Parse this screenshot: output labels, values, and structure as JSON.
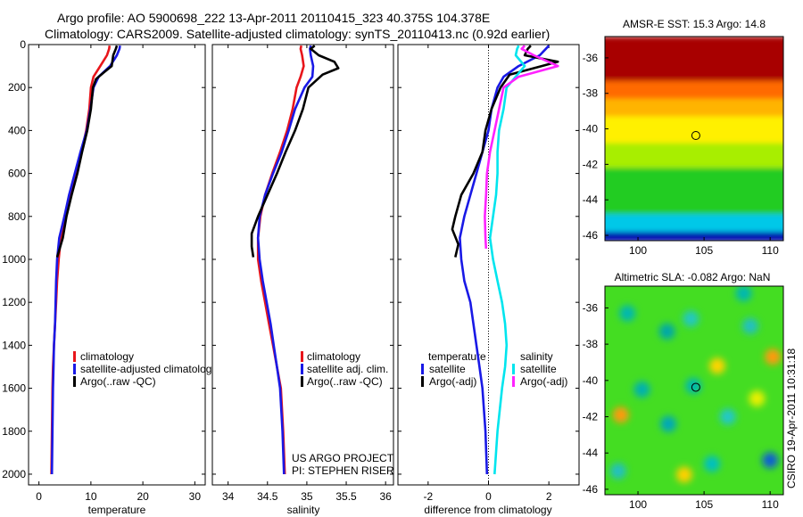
{
  "header": {
    "line1": "Argo profile: AO 5900698_222 13-Apr-2011 20110415_323 40.375S 104.378E",
    "line2": "Climatology: CARS2009. Satellite-adjusted climatology: synTS_20110413.nc (0.92d earlier)"
  },
  "side_label": "CSIRO 19-Apr-2011 10:31:18",
  "credit": {
    "line1": "US ARGO PROJECT",
    "line2": "PI: STEPHEN RISER"
  },
  "colors": {
    "red": "#e8151b",
    "blue": "#1919e6",
    "black": "#000000",
    "cyan": "#00e5ee",
    "magenta": "#ff22ff"
  },
  "chart_data": [
    {
      "type": "line",
      "panel": "temperature",
      "xlabel": "temperature",
      "ylabel": "",
      "xlim": [
        -2,
        32
      ],
      "ylim": [
        2050,
        0
      ],
      "xticks": [
        0,
        10,
        20,
        30
      ],
      "yticks": [
        0,
        200,
        400,
        600,
        800,
        1000,
        1200,
        1400,
        1600,
        1800,
        2000
      ],
      "legend": {
        "position": "lower-middle",
        "entries": [
          "climatology",
          "satellite-adjusted climatology",
          "Argo(..raw -QC)"
        ]
      },
      "series": [
        {
          "name": "climatology",
          "color": "red",
          "x": [
            13.6,
            13.5,
            13.1,
            11.8,
            10.5,
            10.0,
            9.7,
            9.1,
            8.2,
            7.3,
            6.2,
            4.9,
            4.2,
            3.8,
            3.5,
            3.3,
            3.1,
            2.9,
            2.7,
            2.6,
            2.5,
            2.4
          ],
          "y": [
            5,
            20,
            50,
            100,
            150,
            200,
            300,
            400,
            500,
            600,
            700,
            800,
            900,
            1000,
            1100,
            1200,
            1300,
            1400,
            1500,
            1600,
            1800,
            2000
          ]
        },
        {
          "name": "satellite-adjusted climatology",
          "color": "blue",
          "x": [
            15.6,
            15.5,
            15.0,
            13.7,
            11.5,
            10.5,
            9.9,
            9.2,
            8.0,
            6.9,
            5.8,
            4.9,
            3.9,
            3.5,
            3.3,
            3.2,
            3.1,
            2.9,
            2.8,
            2.7,
            2.6,
            2.5
          ],
          "y": [
            5,
            20,
            50,
            100,
            150,
            200,
            300,
            400,
            500,
            600,
            700,
            800,
            900,
            1000,
            1100,
            1200,
            1300,
            1400,
            1500,
            1600,
            1800,
            2000
          ]
        },
        {
          "name": "Argo(..raw -QC)",
          "color": "black",
          "x": [
            15.0,
            14.8,
            14.3,
            14.0,
            12.5,
            11.0,
            10.4,
            10.0,
            9.3,
            8.3,
            7.4,
            6.3,
            5.3,
            4.6,
            4.0,
            3.5
          ],
          "y": [
            5,
            20,
            50,
            100,
            130,
            160,
            200,
            300,
            400,
            500,
            600,
            700,
            800,
            900,
            950,
            990
          ]
        }
      ]
    },
    {
      "type": "line",
      "panel": "salinity",
      "xlabel": "salinity",
      "ylabel": "",
      "xlim": [
        33.8,
        36.1
      ],
      "ylim": [
        2050,
        0
      ],
      "xticks": [
        34,
        34.5,
        35,
        35.5,
        36
      ],
      "legend": {
        "position": "lower-middle",
        "entries": [
          "climatology",
          "satellite adj. clim.",
          "Argo(..raw -QC)"
        ]
      },
      "series": [
        {
          "name": "climatology",
          "color": "red",
          "x": [
            34.93,
            34.92,
            34.94,
            34.96,
            34.92,
            34.87,
            34.82,
            34.75,
            34.66,
            34.56,
            34.47,
            34.41,
            34.38,
            34.38,
            34.42,
            34.47,
            34.52,
            34.57,
            34.62,
            34.67,
            34.7,
            34.72
          ],
          "y": [
            5,
            20,
            50,
            100,
            150,
            200,
            300,
            400,
            500,
            600,
            700,
            800,
            900,
            1000,
            1100,
            1200,
            1300,
            1400,
            1500,
            1600,
            1800,
            2000
          ]
        },
        {
          "name": "satellite adj. clim.",
          "color": "blue",
          "x": [
            35.05,
            35.04,
            35.05,
            35.08,
            35.07,
            34.97,
            34.85,
            34.77,
            34.68,
            34.57,
            34.47,
            34.4,
            34.38,
            34.4,
            34.44,
            34.49,
            34.54,
            34.58,
            34.62,
            34.66,
            34.69,
            34.71
          ],
          "y": [
            5,
            20,
            50,
            100,
            150,
            200,
            300,
            400,
            500,
            600,
            700,
            800,
            900,
            1000,
            1100,
            1200,
            1300,
            1400,
            1500,
            1600,
            1800,
            2000
          ]
        },
        {
          "name": "Argo(..raw -QC)",
          "color": "black",
          "x": [
            35.1,
            35.05,
            35.15,
            35.35,
            35.4,
            35.2,
            35.02,
            34.95,
            34.85,
            34.73,
            34.62,
            34.5,
            34.38,
            34.3,
            34.3,
            34.32
          ],
          "y": [
            5,
            20,
            50,
            80,
            110,
            140,
            200,
            300,
            400,
            500,
            600,
            700,
            800,
            880,
            940,
            990
          ]
        }
      ]
    },
    {
      "type": "line",
      "panel": "difference",
      "xlabel": "difference from climatology",
      "ylabel": "",
      "xlim": [
        -3,
        3
      ],
      "ylim": [
        2050,
        0
      ],
      "xticks": [
        -2,
        0,
        2
      ],
      "legend": {
        "position": "lower-middle",
        "entries": [
          "temperature",
          "satellite",
          "Argo(-adj)",
          "salinity",
          "satellite",
          "Argo(-adj)"
        ]
      },
      "series": [
        {
          "name": "temperature satellite",
          "color": "blue",
          "x": [
            2.0,
            1.9,
            1.7,
            1.0,
            0.5,
            0.3,
            0.1,
            0.0,
            -0.2,
            -0.4,
            -0.6,
            -0.8,
            -0.95,
            -0.9,
            -0.8,
            -0.6,
            -0.5,
            -0.4,
            -0.3,
            -0.2,
            -0.1,
            -0.05
          ],
          "y": [
            5,
            20,
            50,
            100,
            150,
            200,
            300,
            400,
            500,
            600,
            700,
            800,
            900,
            1000,
            1100,
            1200,
            1300,
            1400,
            1500,
            1600,
            1800,
            2000
          ]
        },
        {
          "name": "temperature Argo(-adj)",
          "color": "black",
          "x": [
            1.4,
            1.3,
            1.2,
            2.3,
            1.5,
            0.7,
            0.4,
            0.1,
            -0.1,
            -0.2,
            -0.5,
            -0.9,
            -1.1,
            -1.2,
            -1.0,
            -1.1
          ],
          "y": [
            5,
            20,
            50,
            80,
            110,
            140,
            200,
            300,
            400,
            500,
            600,
            700,
            800,
            860,
            930,
            990
          ]
        },
        {
          "name": "salinity satellite",
          "color": "cyan",
          "x": [
            1.0,
            0.95,
            0.9,
            1.2,
            0.9,
            0.6,
            0.5,
            0.35,
            0.3,
            0.3,
            0.25,
            0.15,
            0.05,
            0.15,
            0.3,
            0.45,
            0.55,
            0.6,
            0.55,
            0.45,
            0.3,
            0.2
          ],
          "y": [
            5,
            20,
            50,
            100,
            150,
            200,
            300,
            400,
            500,
            600,
            700,
            800,
            900,
            1000,
            1100,
            1200,
            1300,
            1400,
            1500,
            1600,
            1800,
            2000
          ]
        },
        {
          "name": "salinity Argo(-adj)",
          "color": "magenta",
          "x": [
            1.2,
            1.1,
            1.5,
            2.3,
            1.0,
            0.5,
            0.2,
            0.05,
            -0.05,
            -0.08,
            -0.1,
            -0.12,
            -0.1,
            -0.08
          ],
          "y": [
            5,
            20,
            50,
            100,
            150,
            200,
            400,
            500,
            600,
            700,
            750,
            800,
            900,
            950
          ]
        }
      ]
    },
    {
      "type": "heatmap",
      "panel": "sst_map",
      "title": "AMSR-E SST: 15.3 Argo: 14.8",
      "xlim": [
        97.5,
        111
      ],
      "ylim": [
        -46.3,
        -34.8
      ],
      "xticks": [
        100,
        105,
        110
      ],
      "yticks": [
        -36,
        -38,
        -40,
        -42,
        -44,
        -46
      ],
      "marker": {
        "lon": 104.378,
        "lat": -40.375
      },
      "bands": [
        {
          "lat_range": [
            -37.3,
            -34.8
          ],
          "color": "#a80000"
        },
        {
          "lat_range": [
            -38.3,
            -37.3
          ],
          "color": "#ff6a00"
        },
        {
          "lat_range": [
            -39.3,
            -38.3
          ],
          "color": "#ffb400"
        },
        {
          "lat_range": [
            -40.8,
            -39.3
          ],
          "color": "#fff000"
        },
        {
          "lat_range": [
            -42.2,
            -40.8
          ],
          "color": "#a8ee00"
        },
        {
          "lat_range": [
            -44.8,
            -42.2
          ],
          "color": "#22cc22"
        },
        {
          "lat_range": [
            -45.8,
            -44.8
          ],
          "color": "#00c8e8"
        },
        {
          "lat_range": [
            -46.3,
            -45.8
          ],
          "color": "#0010b0"
        }
      ]
    },
    {
      "type": "heatmap",
      "panel": "sla_map",
      "title": "Altimetric SLA: -0.082 Argo: NaN",
      "xlim": [
        97.5,
        111
      ],
      "ylim": [
        -46.3,
        -34.8
      ],
      "xticks": [
        100,
        105,
        110
      ],
      "yticks": [
        -36,
        -38,
        -40,
        -42,
        -44,
        -46
      ],
      "marker": {
        "lon": 104.378,
        "lat": -40.375
      },
      "background": "#44dd22",
      "spots": [
        {
          "lon": 99.2,
          "lat": -36.3,
          "color": "#00b8b0"
        },
        {
          "lon": 104.0,
          "lat": -36.6,
          "color": "#22c8c0"
        },
        {
          "lon": 108.0,
          "lat": -35.2,
          "color": "#00b8b0"
        },
        {
          "lon": 102.2,
          "lat": -37.3,
          "color": "#00a8a8"
        },
        {
          "lon": 108.5,
          "lat": -37.0,
          "color": "#22c0c0"
        },
        {
          "lon": 100.3,
          "lat": -40.5,
          "color": "#00b0b0"
        },
        {
          "lon": 104.2,
          "lat": -40.3,
          "color": "#00b8b0"
        },
        {
          "lon": 102.3,
          "lat": -42.4,
          "color": "#00a8b8"
        },
        {
          "lon": 106.8,
          "lat": -42.0,
          "color": "#22c8c8"
        },
        {
          "lon": 105.6,
          "lat": -44.6,
          "color": "#00c0c0"
        },
        {
          "lon": 110.0,
          "lat": -44.4,
          "color": "#1060d0"
        },
        {
          "lon": 98.5,
          "lat": -45.0,
          "color": "#22c0c0"
        },
        {
          "lon": 110.2,
          "lat": -38.7,
          "color": "#ff9a10"
        },
        {
          "lon": 98.7,
          "lat": -41.9,
          "color": "#ff9a10"
        },
        {
          "lon": 106.0,
          "lat": -39.2,
          "color": "#ffd400"
        },
        {
          "lon": 103.5,
          "lat": -45.2,
          "color": "#ffd000"
        },
        {
          "lon": 109.0,
          "lat": -41.0,
          "color": "#e8f000"
        }
      ]
    }
  ]
}
